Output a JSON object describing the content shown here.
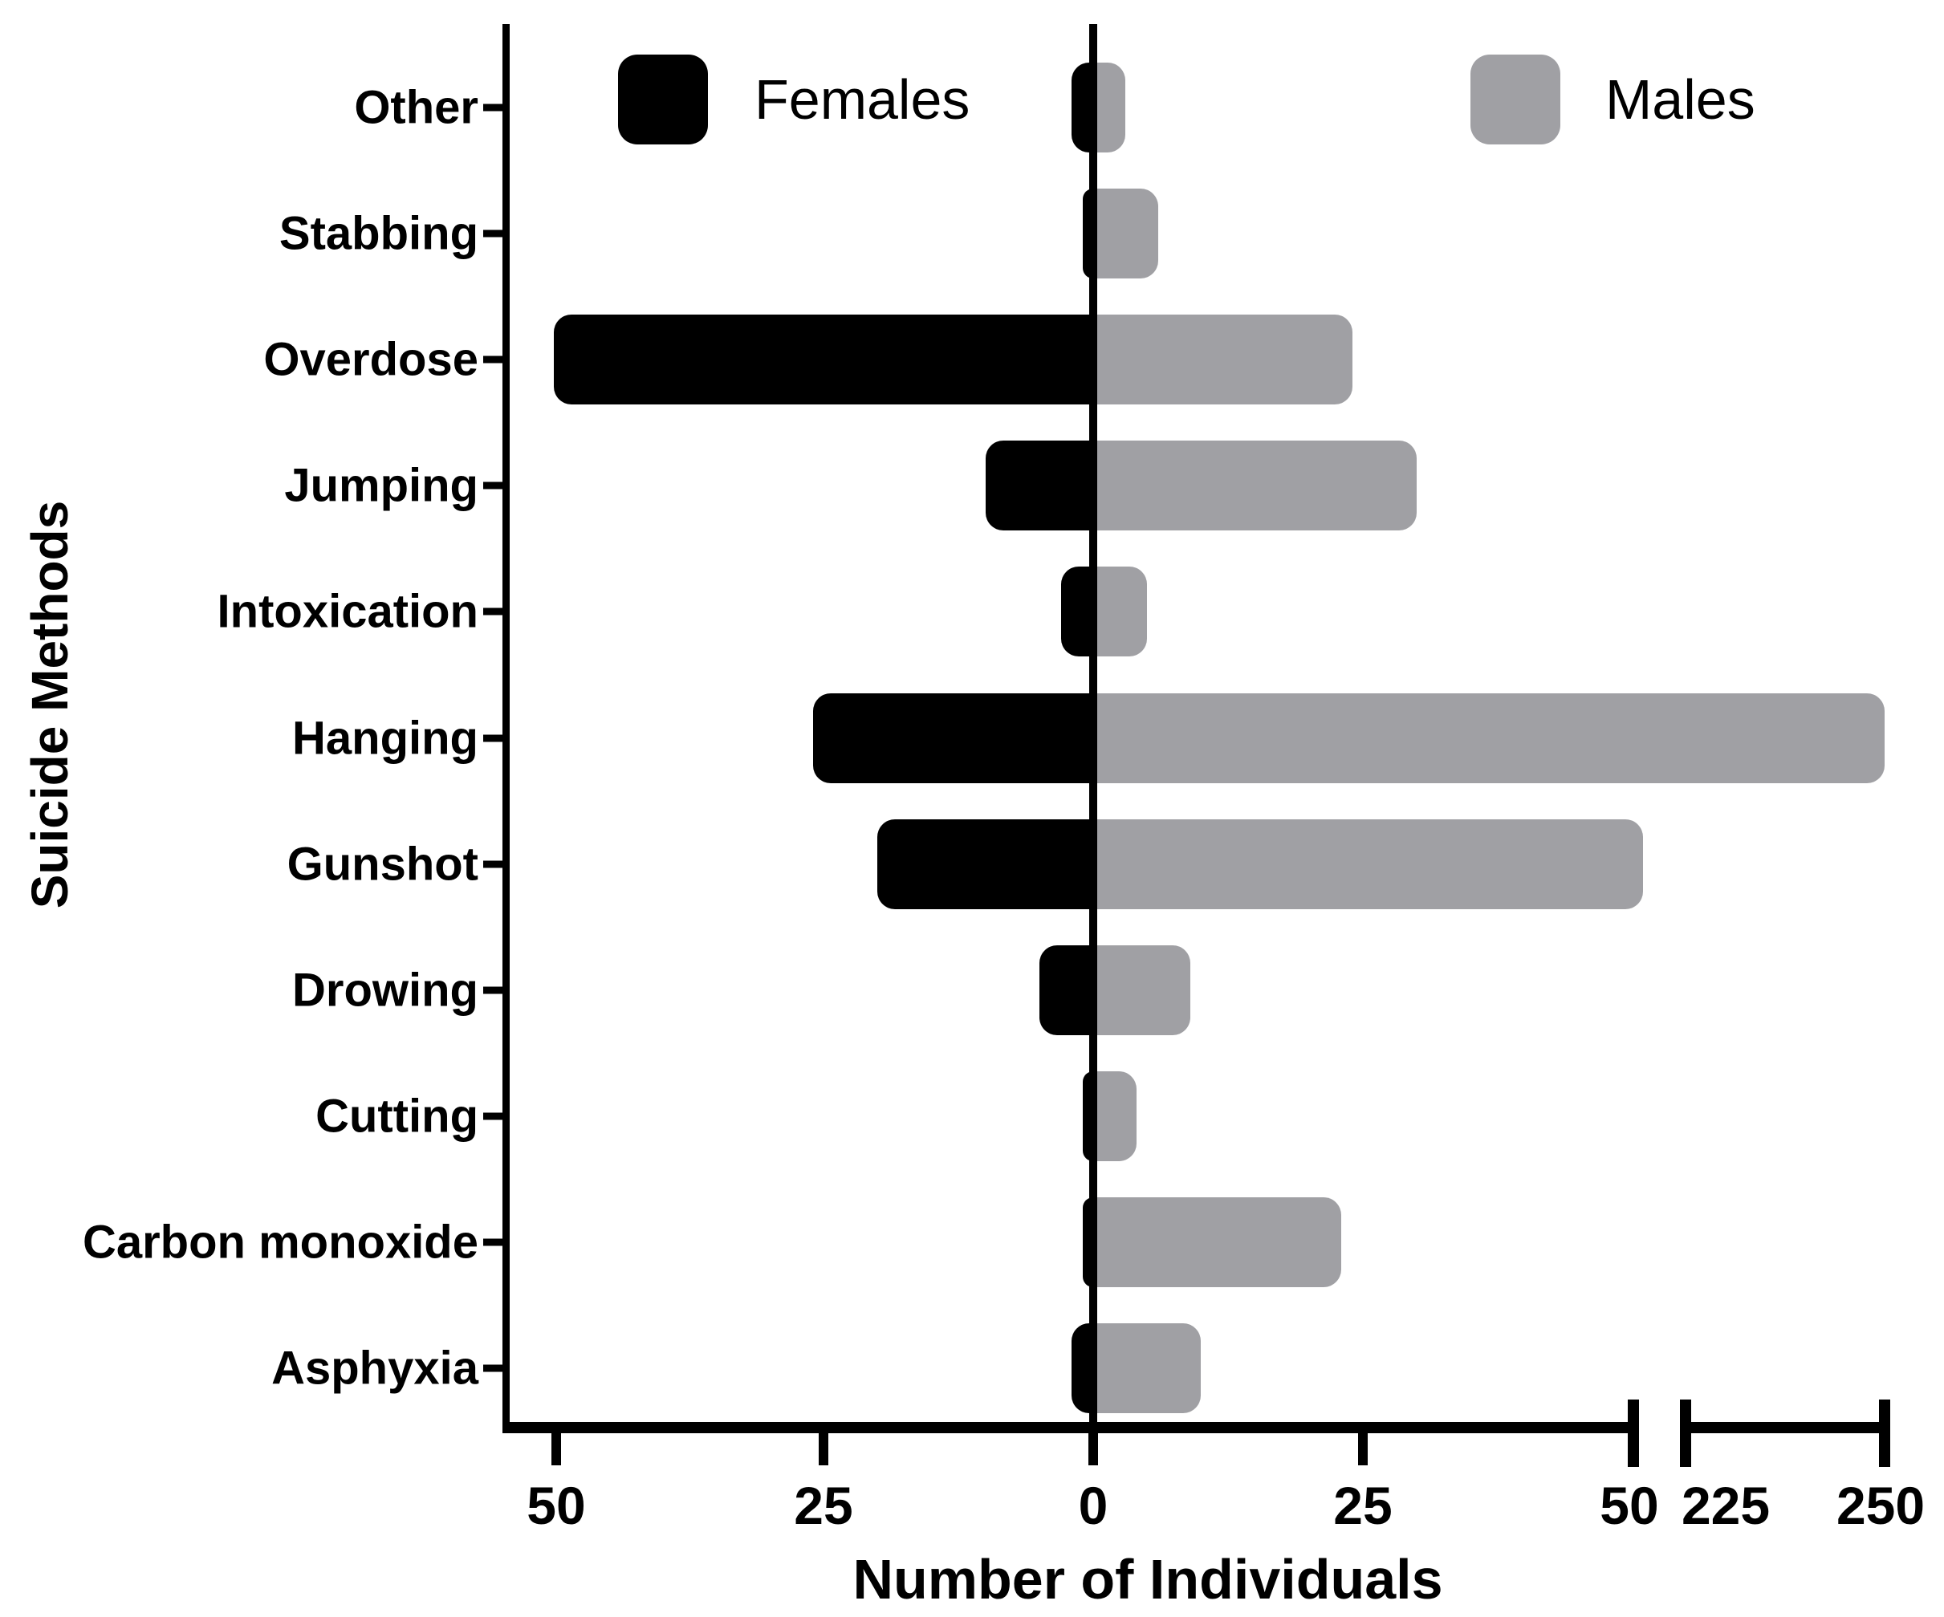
{
  "chart_data": {
    "type": "bar",
    "variant": "horizontal-diverging",
    "title": "",
    "xlabel": "Number of Individuals",
    "ylabel": "Suicide Methods",
    "categories": [
      "Other",
      "Stabbing",
      "Overdose",
      "Jumping",
      "Intoxication",
      "Hanging",
      "Gunshot",
      "Drowing",
      "Cutting",
      "Carbon monoxide",
      "Asphyxia"
    ],
    "series": [
      {
        "name": "Females",
        "side": "left",
        "color": "#000000",
        "values": [
          2,
          1,
          50,
          10,
          3,
          26,
          20,
          5,
          1,
          1,
          2
        ]
      },
      {
        "name": "Males",
        "side": "right",
        "color": "#a0a0a4",
        "values": [
          3,
          6,
          24,
          30,
          5,
          250,
          51,
          9,
          4,
          23,
          10
        ]
      }
    ],
    "x_axis": {
      "tick_labels": [
        "50",
        "25",
        "0",
        "25",
        "50",
        "225",
        "250"
      ],
      "tick_values": [
        -50,
        -25,
        0,
        25,
        50,
        225,
        250
      ],
      "axis_break": true,
      "break_between": [
        50,
        225
      ],
      "grid": false
    },
    "legend": {
      "position": "top-inside",
      "entries": [
        {
          "label": "Females",
          "color": "#000000"
        },
        {
          "label": "Males",
          "color": "#a0a0a4"
        }
      ]
    }
  },
  "colors": {
    "females_bar": "#000000",
    "males_bar": "#a0a0a4",
    "axis": "#000000",
    "background": "#ffffff"
  }
}
